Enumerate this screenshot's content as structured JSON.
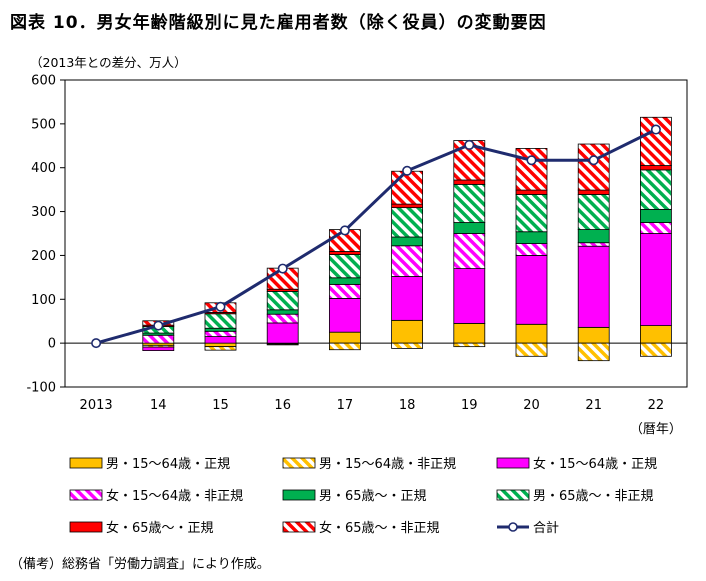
{
  "chart_data": {
    "type": "bar",
    "stacked": true,
    "title": "図表 10．男女年齢階級別に見た雇用者数（除く役員）の変動要因",
    "ylabel": "（2013年との差分、万人）",
    "xlabel_suffix": "（暦年）",
    "ylim": [
      -100,
      600
    ],
    "yticks": [
      -100,
      0,
      100,
      200,
      300,
      400,
      500,
      600
    ],
    "categories": [
      "2013",
      "14",
      "15",
      "16",
      "17",
      "18",
      "19",
      "20",
      "21",
      "22"
    ],
    "series": [
      {
        "key": "m_young_reg",
        "name": "男・15～64歳・正規",
        "color": "#ffc000",
        "pattern": "solid",
        "values": [
          0,
          -5,
          -8,
          -2,
          25,
          52,
          45,
          43,
          36,
          40
        ]
      },
      {
        "key": "m_young_non",
        "name": "男・15～64歳・非正規",
        "color": "#ffc000",
        "pattern": "hatch",
        "values": [
          0,
          -4,
          -8,
          -2,
          -15,
          -12,
          -8,
          -30,
          -40,
          -30
        ]
      },
      {
        "key": "f_young_reg",
        "name": "女・15～64歳・正規",
        "color": "#ff00ff",
        "pattern": "solid",
        "values": [
          0,
          -8,
          15,
          46,
          77,
          100,
          125,
          157,
          185,
          210
        ]
      },
      {
        "key": "f_young_non",
        "name": "女・15～64歳・非正規",
        "color": "#ff00ff",
        "pattern": "hatch",
        "values": [
          0,
          18,
          12,
          20,
          32,
          70,
          80,
          27,
          8,
          25
        ]
      },
      {
        "key": "m_old_reg",
        "name": "男・65歳～・正規",
        "color": "#00b050",
        "pattern": "solid",
        "values": [
          0,
          5,
          7,
          10,
          15,
          20,
          25,
          27,
          30,
          30
        ]
      },
      {
        "key": "m_old_non",
        "name": "男・65歳～・非正規",
        "color": "#00b050",
        "pattern": "hatch",
        "values": [
          0,
          15,
          33,
          42,
          53,
          67,
          87,
          85,
          80,
          90
        ]
      },
      {
        "key": "f_old_reg",
        "name": "女・65歳～・正規",
        "color": "#ff0000",
        "pattern": "solid",
        "values": [
          0,
          3,
          3,
          5,
          7,
          8,
          10,
          10,
          10,
          10
        ]
      },
      {
        "key": "f_old_non",
        "name": "女・65歳～・非正規",
        "color": "#ff0000",
        "pattern": "hatch",
        "values": [
          0,
          10,
          22,
          48,
          50,
          75,
          90,
          95,
          105,
          110
        ]
      }
    ],
    "total": {
      "name": "合計",
      "color": "#1f2b6e",
      "values": [
        0,
        40,
        83,
        170,
        257,
        393,
        452,
        417,
        417,
        487
      ]
    },
    "grid": false,
    "legend_position": "bottom"
  },
  "note": "（備考）総務省「労働力調査」により作成。"
}
